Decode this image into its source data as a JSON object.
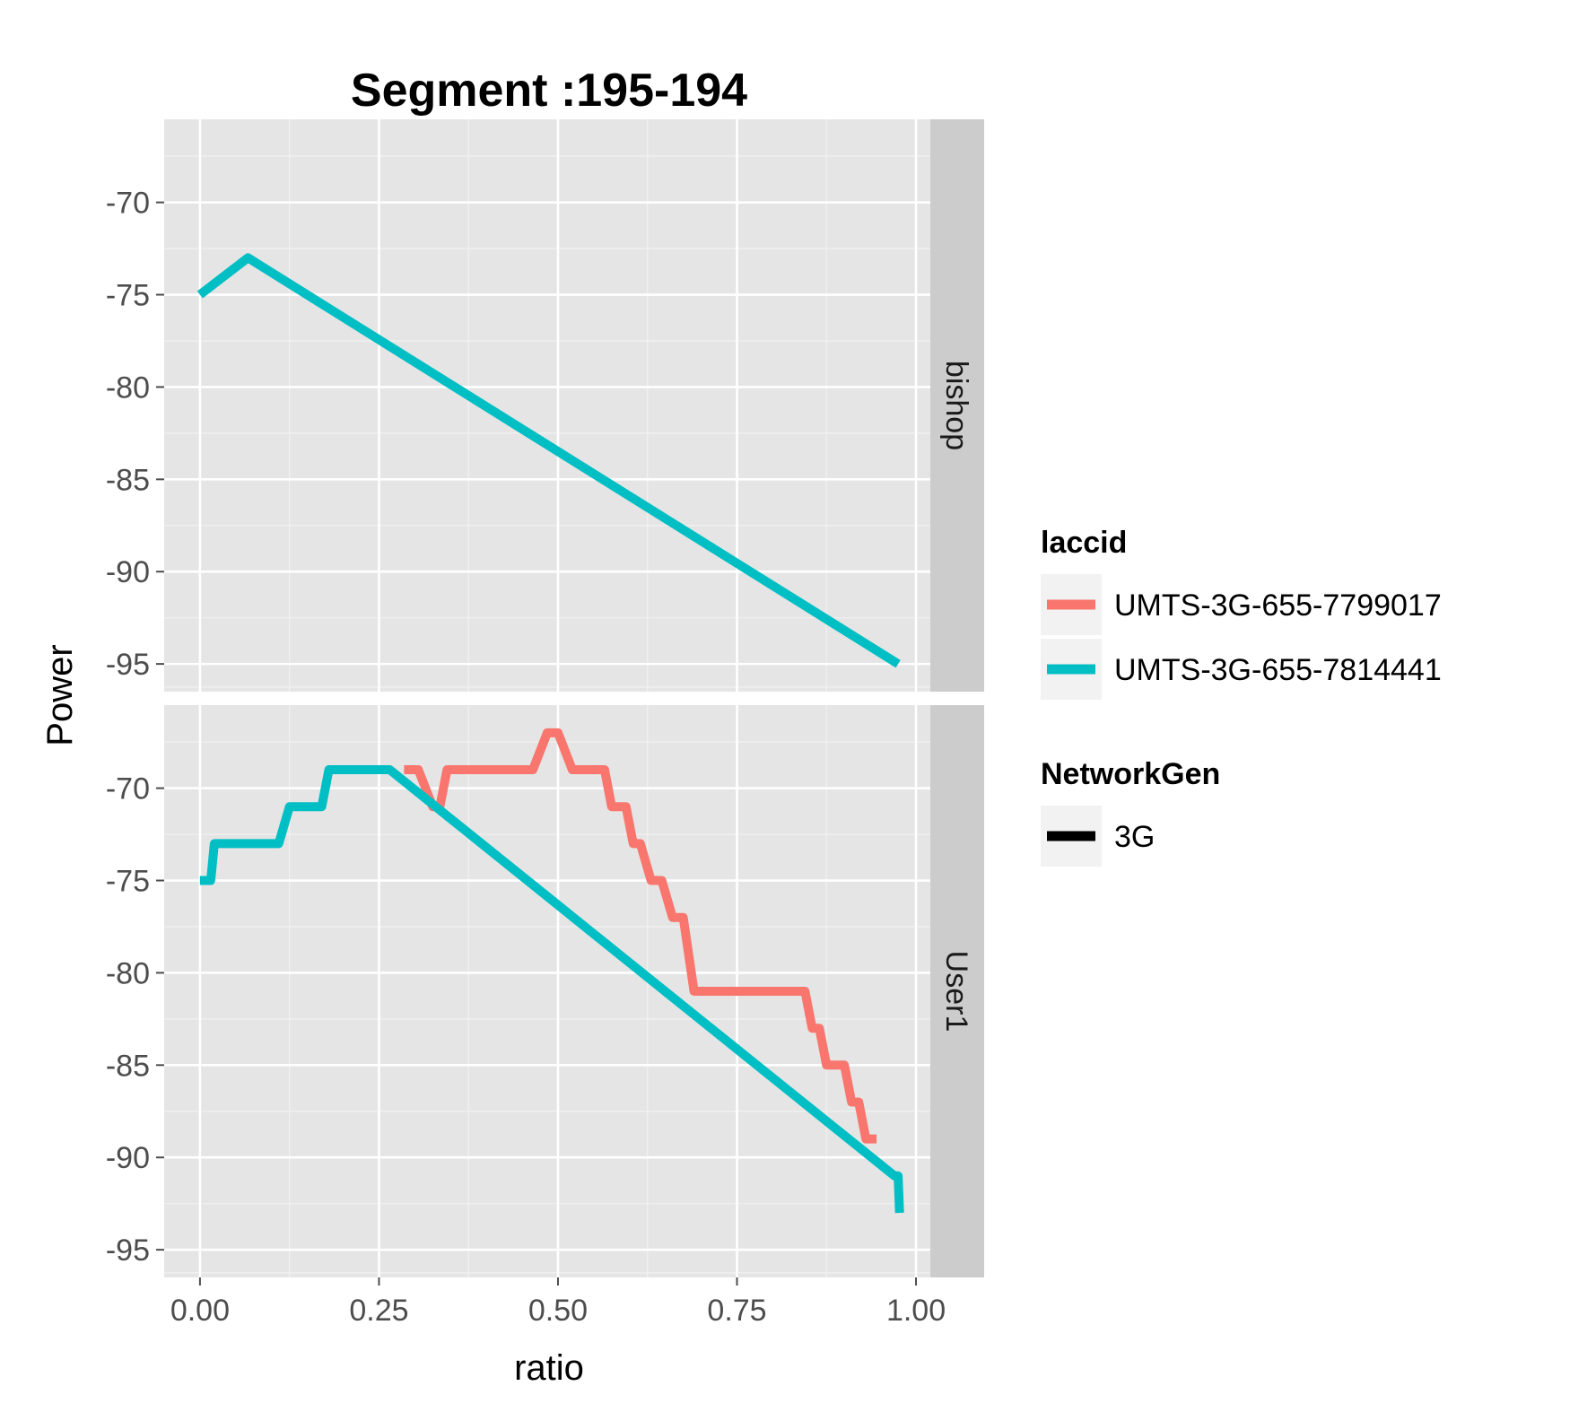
{
  "chart_data": {
    "type": "line",
    "title": "Segment :195-194",
    "xlabel": "ratio",
    "ylabel": "Power",
    "xlim": [
      -0.05,
      1.02
    ],
    "ylim": [
      -96.5,
      -65.5
    ],
    "x_ticks": [
      "0.00",
      "0.25",
      "0.50",
      "0.75",
      "1.00"
    ],
    "x_tick_values": [
      0,
      0.25,
      0.5,
      0.75,
      1.0
    ],
    "y_ticks": [
      "-70",
      "-75",
      "-80",
      "-85",
      "-90",
      "-95"
    ],
    "y_tick_values": [
      -70,
      -75,
      -80,
      -85,
      -90,
      -95
    ],
    "grid": true,
    "legend_position": "right",
    "facets": [
      {
        "name": "bishop",
        "series": [
          {
            "name": "UMTS-3G-655-7814441",
            "color": "#00BFC4",
            "points": [
              [
                0.0,
                -75
              ],
              [
                0.067,
                -73
              ],
              [
                0.975,
                -95
              ]
            ]
          }
        ]
      },
      {
        "name": "User1",
        "series": [
          {
            "name": "UMTS-3G-655-7799017",
            "color": "#F8766D",
            "points": [
              [
                0.285,
                -69
              ],
              [
                0.305,
                -69
              ],
              [
                0.315,
                -70
              ],
              [
                0.325,
                -71
              ],
              [
                0.335,
                -71
              ],
              [
                0.345,
                -69
              ],
              [
                0.465,
                -69
              ],
              [
                0.475,
                -68
              ],
              [
                0.485,
                -67
              ],
              [
                0.5,
                -67
              ],
              [
                0.51,
                -68
              ],
              [
                0.52,
                -69
              ],
              [
                0.565,
                -69
              ],
              [
                0.575,
                -71
              ],
              [
                0.595,
                -71
              ],
              [
                0.605,
                -73
              ],
              [
                0.615,
                -73
              ],
              [
                0.63,
                -75
              ],
              [
                0.645,
                -75
              ],
              [
                0.66,
                -77
              ],
              [
                0.675,
                -77
              ],
              [
                0.69,
                -81
              ],
              [
                0.845,
                -81
              ],
              [
                0.855,
                -83
              ],
              [
                0.865,
                -83
              ],
              [
                0.875,
                -85
              ],
              [
                0.9,
                -85
              ],
              [
                0.91,
                -87
              ],
              [
                0.92,
                -87
              ],
              [
                0.93,
                -89
              ],
              [
                0.945,
                -89
              ]
            ]
          },
          {
            "name": "UMTS-3G-655-7814441",
            "color": "#00BFC4",
            "points": [
              [
                0.0,
                -75
              ],
              [
                0.015,
                -75
              ],
              [
                0.02,
                -73
              ],
              [
                0.11,
                -73
              ],
              [
                0.125,
                -71
              ],
              [
                0.17,
                -71
              ],
              [
                0.18,
                -69
              ],
              [
                0.265,
                -69
              ],
              [
                0.97,
                -91
              ],
              [
                0.975,
                -91
              ],
              [
                0.977,
                -93
              ]
            ]
          }
        ]
      }
    ]
  },
  "legend": {
    "laccid_title": "laccid",
    "laccid_items": [
      {
        "label": "UMTS-3G-655-7799017",
        "color": "#F8766D"
      },
      {
        "label": "UMTS-3G-655-7814441",
        "color": "#00BFC4"
      }
    ],
    "networkgen_title": "NetworkGen",
    "networkgen_items": [
      {
        "label": "3G",
        "color": "#000000"
      }
    ]
  }
}
